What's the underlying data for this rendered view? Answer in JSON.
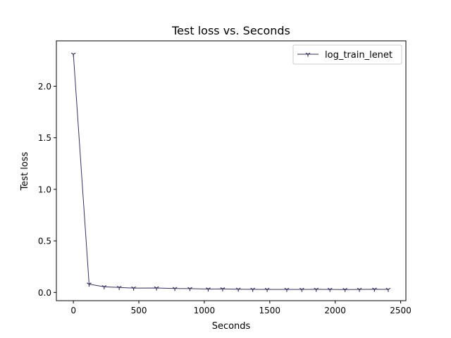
{
  "chart_data": {
    "type": "line",
    "title": "Test loss  vs. Seconds",
    "xlabel": "Seconds",
    "ylabel": "Test loss",
    "xlim": [
      -130,
      2540
    ],
    "ylim": [
      -0.08,
      2.44
    ],
    "xticks": [
      0,
      500,
      1000,
      1500,
      2000,
      2500
    ],
    "yticks": [
      0.0,
      0.5,
      1.0,
      1.5,
      2.0
    ],
    "xtick_labels": [
      "0",
      "500",
      "1000",
      "1500",
      "2000",
      "2500"
    ],
    "ytick_labels": [
      "0.0",
      "0.5",
      "1.0",
      "1.5",
      "2.0"
    ],
    "grid": false,
    "legend_position": "top-right",
    "series": [
      {
        "name": "log_train_lenet",
        "color": "#3a2f63",
        "marker": "tri_down",
        "x": [
          0,
          120,
          235,
          350,
          460,
          635,
          775,
          890,
          1030,
          1140,
          1260,
          1370,
          1480,
          1630,
          1745,
          1855,
          1960,
          2075,
          2185,
          2300,
          2405
        ],
        "y": [
          2.31,
          0.08,
          0.055,
          0.048,
          0.042,
          0.043,
          0.038,
          0.037,
          0.033,
          0.034,
          0.031,
          0.03,
          0.029,
          0.029,
          0.029,
          0.03,
          0.029,
          0.028,
          0.029,
          0.031,
          0.029
        ]
      }
    ]
  }
}
